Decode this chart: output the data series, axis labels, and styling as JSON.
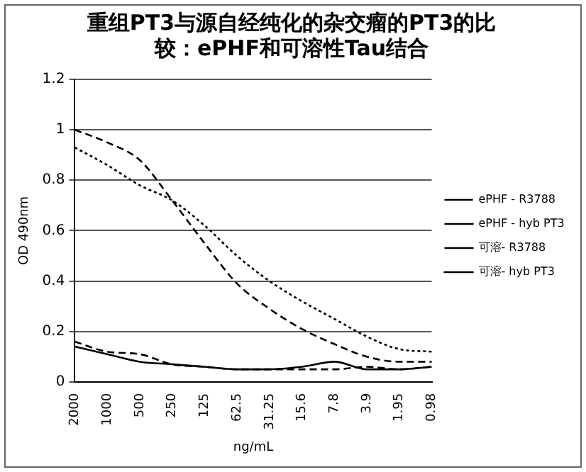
{
  "chart_data": {
    "type": "line",
    "title": "重组PT3与源自经纯化的杂交瘤的PT3的比较：ePHF和可溶性Tau结合",
    "xlabel": "ng/mL",
    "ylabel": "OD 490nm",
    "categories": [
      "2000",
      "1000",
      "500",
      "250",
      "125",
      "62.5",
      "31.25",
      "15.6",
      "7.8",
      "3.9",
      "1.95",
      "0.98"
    ],
    "series": [
      {
        "name": "ePHF - R3788",
        "color": "#000000",
        "line_style": "dotted",
        "values": [
          0.93,
          0.86,
          0.78,
          0.72,
          0.62,
          0.5,
          0.4,
          0.32,
          0.25,
          0.18,
          0.13,
          0.12
        ]
      },
      {
        "name": "ePHF - hyb PT3",
        "color": "#000000",
        "line_style": "dashed",
        "values": [
          1.0,
          0.95,
          0.88,
          0.72,
          0.55,
          0.39,
          0.29,
          0.21,
          0.15,
          0.1,
          0.08,
          0.08
        ]
      },
      {
        "name": "可溶- R3788",
        "color": "#000000",
        "line_style": "dashed",
        "values": [
          0.16,
          0.12,
          0.11,
          0.07,
          0.06,
          0.05,
          0.05,
          0.05,
          0.05,
          0.06,
          0.05,
          0.06
        ]
      },
      {
        "name": "可溶- hyb PT3",
        "color": "#000000",
        "line_style": "solid",
        "values": [
          0.14,
          0.11,
          0.08,
          0.07,
          0.06,
          0.05,
          0.05,
          0.06,
          0.08,
          0.05,
          0.05,
          0.06
        ]
      }
    ],
    "ylim": [
      0,
      1.2
    ],
    "yticks": [
      0,
      0.2,
      0.4,
      0.6,
      0.8,
      1,
      1.2
    ],
    "grid": "y",
    "legend": "right",
    "marker": "none"
  }
}
